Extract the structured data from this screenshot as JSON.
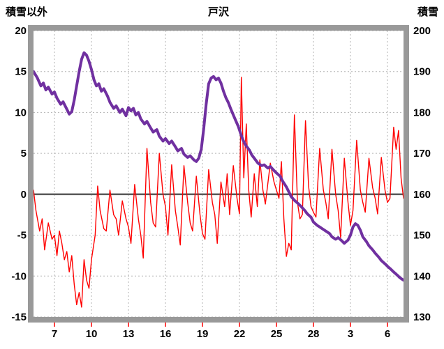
{
  "chart_data": {
    "type": "line",
    "title": "戸沢",
    "left_axis": {
      "label": "積雪以外",
      "min": -15,
      "max": 20,
      "ticks": [
        20,
        15,
        10,
        5,
        0,
        -5,
        -10,
        -15
      ]
    },
    "right_axis": {
      "label": "積雪",
      "min": 130,
      "max": 200,
      "ticks": [
        200,
        190,
        180,
        170,
        160,
        150,
        140,
        130
      ]
    },
    "x_axis": {
      "range": [
        5.3,
        35.3
      ],
      "tick_days": [
        7,
        10,
        13,
        16,
        19,
        22,
        25,
        28,
        31,
        34
      ],
      "tick_labels": [
        "7",
        "10",
        "13",
        "16",
        "19",
        "22",
        "25",
        "28",
        "3",
        "6"
      ]
    },
    "zero_line_left_value": 0,
    "grid": "dashed",
    "colors": {
      "frame": "#999999",
      "grid": "#b3b3b3",
      "zero_line": "#595959",
      "tick_mark": "#ff0000",
      "text": "#000000",
      "background": "#ffffff"
    },
    "series": [
      {
        "name": "積雪以外",
        "axis": "left",
        "color": "#ff0000",
        "width": 1.4,
        "points": [
          [
            5.3,
            0.5
          ],
          [
            5.5,
            -2.0
          ],
          [
            5.8,
            -4.5
          ],
          [
            6.0,
            -3.0
          ],
          [
            6.2,
            -6.8
          ],
          [
            6.5,
            -3.5
          ],
          [
            6.8,
            -5.5
          ],
          [
            7.0,
            -5.0
          ],
          [
            7.2,
            -7.5
          ],
          [
            7.4,
            -4.5
          ],
          [
            7.6,
            -6.0
          ],
          [
            7.8,
            -8.0
          ],
          [
            8.0,
            -7.0
          ],
          [
            8.2,
            -9.5
          ],
          [
            8.4,
            -7.5
          ],
          [
            8.6,
            -11.0
          ],
          [
            8.8,
            -13.5
          ],
          [
            9.0,
            -12.0
          ],
          [
            9.2,
            -13.8
          ],
          [
            9.4,
            -8.0
          ],
          [
            9.6,
            -10.5
          ],
          [
            9.8,
            -11.5
          ],
          [
            10.0,
            -8.0
          ],
          [
            10.3,
            -5.0
          ],
          [
            10.5,
            1.0
          ],
          [
            10.7,
            -2.0
          ],
          [
            11.0,
            -4.2
          ],
          [
            11.2,
            -4.5
          ],
          [
            11.5,
            0.5
          ],
          [
            11.8,
            -2.5
          ],
          [
            12.0,
            -3.0
          ],
          [
            12.2,
            -5.0
          ],
          [
            12.5,
            -0.8
          ],
          [
            12.8,
            -3.0
          ],
          [
            13.0,
            -4.0
          ],
          [
            13.2,
            -6.0
          ],
          [
            13.5,
            1.2
          ],
          [
            13.8,
            -3.0
          ],
          [
            14.0,
            -5.0
          ],
          [
            14.2,
            -7.8
          ],
          [
            14.5,
            5.6
          ],
          [
            14.8,
            -1.0
          ],
          [
            15.0,
            -3.5
          ],
          [
            15.2,
            -4.0
          ],
          [
            15.5,
            5.0
          ],
          [
            15.8,
            0.0
          ],
          [
            16.0,
            -1.5
          ],
          [
            16.2,
            -5.0
          ],
          [
            16.5,
            3.6
          ],
          [
            16.8,
            -2.0
          ],
          [
            17.0,
            -4.0
          ],
          [
            17.2,
            -6.2
          ],
          [
            17.5,
            3.5
          ],
          [
            17.8,
            -1.0
          ],
          [
            18.0,
            -3.5
          ],
          [
            18.2,
            -4.5
          ],
          [
            18.5,
            2.2
          ],
          [
            18.8,
            -2.5
          ],
          [
            19.0,
            -4.8
          ],
          [
            19.2,
            -5.5
          ],
          [
            19.5,
            3.0
          ],
          [
            19.8,
            -1.0
          ],
          [
            20.0,
            -2.5
          ],
          [
            20.2,
            -6.0
          ],
          [
            20.5,
            1.5
          ],
          [
            20.8,
            -1.5
          ],
          [
            21.0,
            2.5
          ],
          [
            21.2,
            -2.5
          ],
          [
            21.5,
            3.5
          ],
          [
            21.8,
            -0.5
          ],
          [
            22.0,
            -2.4
          ],
          [
            22.15,
            14.3
          ],
          [
            22.35,
            2.0
          ],
          [
            22.55,
            8.6
          ],
          [
            22.75,
            0.5
          ],
          [
            22.95,
            -2.8
          ],
          [
            23.2,
            2.5
          ],
          [
            23.45,
            -1.5
          ],
          [
            23.65,
            4.2
          ],
          [
            23.9,
            0.5
          ],
          [
            24.1,
            -1.2
          ],
          [
            24.5,
            3.8
          ],
          [
            24.8,
            1.5
          ],
          [
            25.0,
            0.5
          ],
          [
            25.2,
            -0.5
          ],
          [
            25.4,
            4.0
          ],
          [
            25.6,
            -3.0
          ],
          [
            25.8,
            -7.6
          ],
          [
            26.0,
            -6.0
          ],
          [
            26.2,
            -6.8
          ],
          [
            26.45,
            9.7
          ],
          [
            26.7,
            -1.0
          ],
          [
            26.9,
            -3.0
          ],
          [
            27.1,
            -2.5
          ],
          [
            27.35,
            9.0
          ],
          [
            27.6,
            1.0
          ],
          [
            27.8,
            -1.5
          ],
          [
            28.0,
            -2.2
          ],
          [
            28.2,
            -2.8
          ],
          [
            28.5,
            5.6
          ],
          [
            28.8,
            0.5
          ],
          [
            29.0,
            -1.0
          ],
          [
            29.2,
            -3.0
          ],
          [
            29.5,
            5.5
          ],
          [
            29.8,
            0.0
          ],
          [
            30.0,
            -2.0
          ],
          [
            30.2,
            -5.3
          ],
          [
            30.5,
            4.4
          ],
          [
            30.8,
            -1.0
          ],
          [
            31.0,
            -3.8
          ],
          [
            31.2,
            -2.0
          ],
          [
            31.5,
            6.6
          ],
          [
            31.8,
            0.5
          ],
          [
            32.0,
            -1.0
          ],
          [
            32.2,
            -2.2
          ],
          [
            32.5,
            4.4
          ],
          [
            32.8,
            0.8
          ],
          [
            33.0,
            -0.5
          ],
          [
            33.2,
            -2.4
          ],
          [
            33.5,
            4.5
          ],
          [
            33.8,
            0.5
          ],
          [
            34.0,
            -1.0
          ],
          [
            34.2,
            -0.5
          ],
          [
            34.5,
            8.2
          ],
          [
            34.7,
            5.5
          ],
          [
            34.9,
            7.8
          ],
          [
            35.1,
            2.0
          ],
          [
            35.3,
            -0.5
          ]
        ]
      },
      {
        "name": "積雪",
        "axis": "right",
        "color": "#7030a0",
        "width": 4,
        "points": [
          [
            5.3,
            190
          ],
          [
            5.6,
            188.5
          ],
          [
            5.9,
            186.5
          ],
          [
            6.1,
            187.2
          ],
          [
            6.3,
            185.5
          ],
          [
            6.5,
            186.2
          ],
          [
            6.8,
            184.5
          ],
          [
            7.0,
            185
          ],
          [
            7.2,
            183.5
          ],
          [
            7.5,
            182
          ],
          [
            7.7,
            182.6
          ],
          [
            8.0,
            180.8
          ],
          [
            8.2,
            179.6
          ],
          [
            8.4,
            180.2
          ],
          [
            8.6,
            183
          ],
          [
            8.8,
            186.5
          ],
          [
            9.0,
            190
          ],
          [
            9.2,
            193
          ],
          [
            9.4,
            194.6
          ],
          [
            9.6,
            194
          ],
          [
            9.8,
            192.5
          ],
          [
            10.0,
            190.5
          ],
          [
            10.2,
            188
          ],
          [
            10.4,
            186.5
          ],
          [
            10.6,
            187
          ],
          [
            10.8,
            185.2
          ],
          [
            11.0,
            185.8
          ],
          [
            11.3,
            184
          ],
          [
            11.5,
            182.5
          ],
          [
            11.8,
            181
          ],
          [
            12.0,
            181.6
          ],
          [
            12.3,
            180
          ],
          [
            12.5,
            180.8
          ],
          [
            12.8,
            179.2
          ],
          [
            13.0,
            181.2
          ],
          [
            13.2,
            180.4
          ],
          [
            13.4,
            181
          ],
          [
            13.6,
            179.4
          ],
          [
            13.8,
            180
          ],
          [
            14.0,
            178.4
          ],
          [
            14.3,
            177.2
          ],
          [
            14.5,
            177.8
          ],
          [
            14.8,
            176.2
          ],
          [
            15.0,
            175.2
          ],
          [
            15.3,
            175.8
          ],
          [
            15.5,
            174.2
          ],
          [
            15.8,
            173
          ],
          [
            16.0,
            173.6
          ],
          [
            16.3,
            172.4
          ],
          [
            16.5,
            173
          ],
          [
            16.8,
            171.6
          ],
          [
            17.0,
            170.6
          ],
          [
            17.3,
            171.2
          ],
          [
            17.5,
            169.8
          ],
          [
            17.8,
            169
          ],
          [
            18.0,
            169.4
          ],
          [
            18.3,
            168.4
          ],
          [
            18.5,
            168
          ],
          [
            18.7,
            168.8
          ],
          [
            18.9,
            171
          ],
          [
            19.1,
            176
          ],
          [
            19.3,
            182
          ],
          [
            19.5,
            187
          ],
          [
            19.7,
            188.4
          ],
          [
            19.9,
            188.8
          ],
          [
            20.1,
            188
          ],
          [
            20.3,
            188.4
          ],
          [
            20.5,
            187.2
          ],
          [
            20.7,
            185.2
          ],
          [
            20.9,
            183.6
          ],
          [
            21.1,
            182.4
          ],
          [
            21.3,
            180.8
          ],
          [
            21.5,
            179.4
          ],
          [
            21.7,
            178
          ],
          [
            21.9,
            176.6
          ],
          [
            22.1,
            174.8
          ],
          [
            22.3,
            173.2
          ],
          [
            22.5,
            172
          ],
          [
            22.8,
            170.8
          ],
          [
            23.0,
            169.6
          ],
          [
            23.3,
            168.4
          ],
          [
            23.5,
            167.6
          ],
          [
            23.8,
            167
          ],
          [
            24.0,
            167.2
          ],
          [
            24.3,
            166.4
          ],
          [
            24.5,
            166.8
          ],
          [
            24.8,
            165.8
          ],
          [
            25.0,
            165.2
          ],
          [
            25.3,
            164.4
          ],
          [
            25.5,
            163.2
          ],
          [
            25.8,
            161.8
          ],
          [
            26.0,
            160.6
          ],
          [
            26.2,
            159.4
          ],
          [
            26.5,
            158.4
          ],
          [
            26.8,
            157.6
          ],
          [
            27.0,
            157
          ],
          [
            27.3,
            156
          ],
          [
            27.5,
            155.2
          ],
          [
            27.8,
            154.4
          ],
          [
            28.0,
            153.2
          ],
          [
            28.3,
            152.4
          ],
          [
            28.5,
            152
          ],
          [
            28.8,
            151.4
          ],
          [
            29.0,
            151
          ],
          [
            29.3,
            150.4
          ],
          [
            29.5,
            149.6
          ],
          [
            29.8,
            149
          ],
          [
            30.0,
            149.4
          ],
          [
            30.3,
            148.6
          ],
          [
            30.5,
            148
          ],
          [
            30.8,
            148.8
          ],
          [
            31.0,
            150
          ],
          [
            31.2,
            152
          ],
          [
            31.4,
            152.8
          ],
          [
            31.6,
            152.4
          ],
          [
            31.8,
            151.2
          ],
          [
            32.0,
            149.6
          ],
          [
            32.3,
            148.4
          ],
          [
            32.5,
            147.4
          ],
          [
            32.8,
            146.4
          ],
          [
            33.0,
            145.6
          ],
          [
            33.3,
            144.6
          ],
          [
            33.5,
            143.8
          ],
          [
            33.8,
            143
          ],
          [
            34.0,
            142.4
          ],
          [
            34.3,
            141.6
          ],
          [
            34.5,
            141
          ],
          [
            34.8,
            140.2
          ],
          [
            35.0,
            139.6
          ],
          [
            35.3,
            139
          ]
        ]
      }
    ]
  }
}
